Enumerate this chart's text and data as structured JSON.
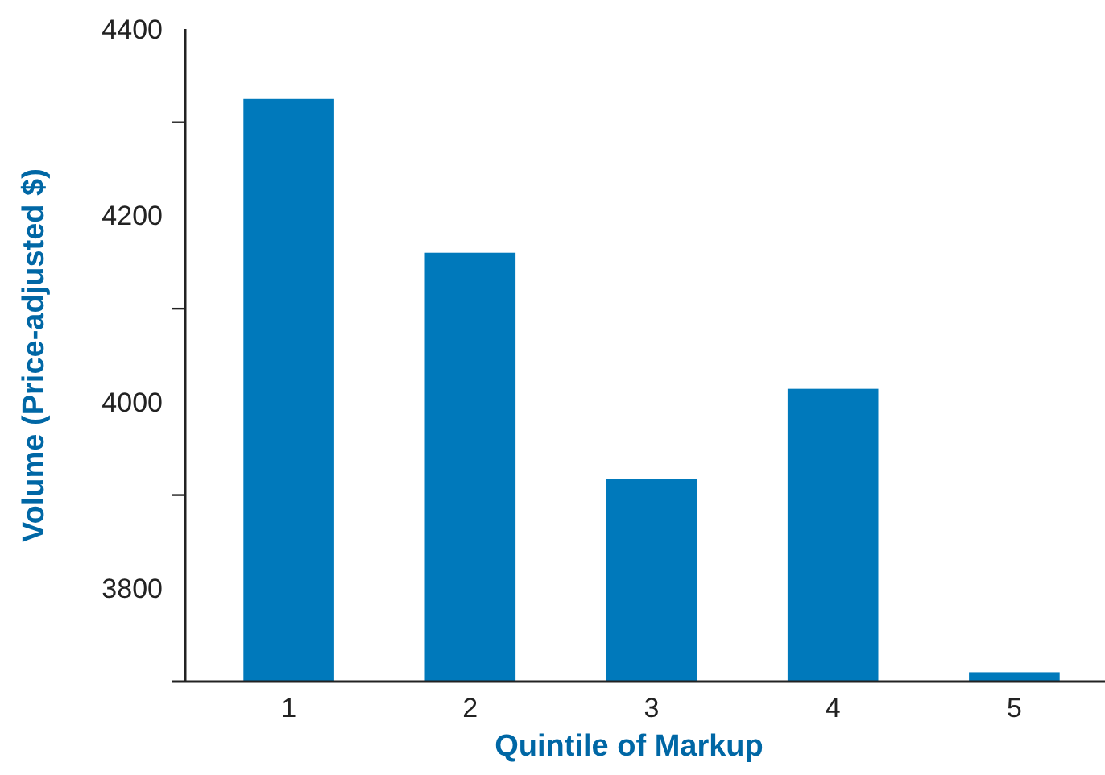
{
  "chart_data": {
    "type": "bar",
    "xlabel": "Quintile of Markup",
    "ylabel": "Volume (Price-adjusted $)",
    "categories": [
      "1",
      "2",
      "3",
      "4",
      "5"
    ],
    "values": [
      4325,
      4160,
      3917,
      4014,
      3710
    ],
    "color": "#0079bb",
    "ylim": [
      3700,
      4400
    ],
    "yticks": [
      {
        "value": 3800,
        "label": "3800"
      },
      {
        "value": 3900,
        "label": null
      },
      {
        "value": 4000,
        "label": "4000"
      },
      {
        "value": 4100,
        "label": null
      },
      {
        "value": 4200,
        "label": "4200"
      },
      {
        "value": 4300,
        "label": null
      },
      {
        "value": 4400,
        "label": "4400"
      }
    ],
    "grid": false
  }
}
